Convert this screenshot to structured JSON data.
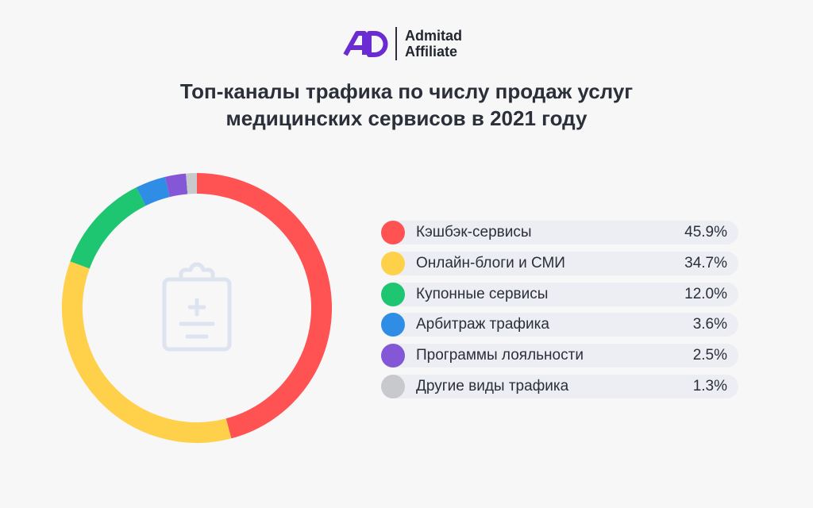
{
  "header": {
    "brand_line1": "Admitad",
    "brand_line2": "Affiliate",
    "title_line1": "Топ-каналы трафика по числу продаж услуг",
    "title_line2": "медицинских сервисов в 2021 году"
  },
  "center_icon": "medical-clipboard-icon",
  "chart_data": {
    "type": "pie",
    "donut": true,
    "title": "Топ-каналы трафика по числу продаж услуг медицинских сервисов в 2021 году",
    "legend_position": "right",
    "slices": [
      {
        "label": "Кэшбэк-сервисы",
        "value": 45.9,
        "display": "45.9%",
        "color": "#ff5253"
      },
      {
        "label": "Онлайн-блоги и СМИ",
        "value": 34.7,
        "display": "34.7%",
        "color": "#ffd04a"
      },
      {
        "label": "Купонные сервисы",
        "value": 12.0,
        "display": "12.0%",
        "color": "#1fc671"
      },
      {
        "label": "Арбитраж трафика",
        "value": 3.6,
        "display": "3.6%",
        "color": "#2f8de6"
      },
      {
        "label": "Программы лояльности",
        "value": 2.5,
        "display": "2.5%",
        "color": "#8457d6"
      },
      {
        "label": "Другие виды трафика",
        "value": 1.3,
        "display": "1.3%",
        "color": "#c8c9cc"
      }
    ]
  }
}
